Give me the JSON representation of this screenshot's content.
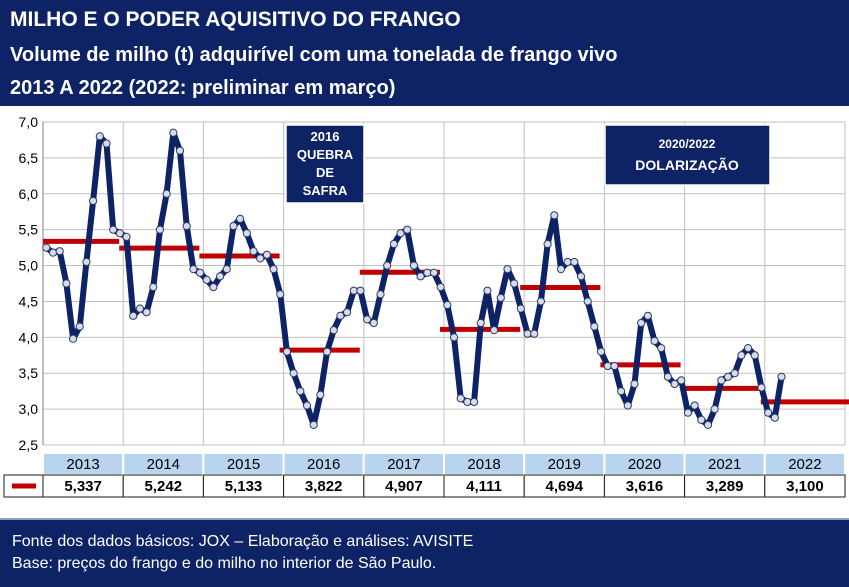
{
  "header": {
    "title": "MILHO E O PODER AQUISITIVO DO FRANGO",
    "subtitle": "Volume de milho (t) adquirível com uma tonelada de frango vivo",
    "period": "2013 A 2022 (2022: preliminar em março)"
  },
  "annotations": {
    "box_2016": [
      "2016",
      "QUEBRA",
      "DE",
      "SAFRA"
    ],
    "box_2020": [
      "2020/2022",
      "DOLARIZAÇÃO"
    ]
  },
  "footer": {
    "line1": "Fonte dos dados básicos: JOX – Elaboração e análises: AVISITE",
    "line2": "Base: preços do frango e do milho no interior de São Paulo."
  },
  "colors": {
    "navy": "#0d2366",
    "line": "#0d2366",
    "average_bar": "#c00000",
    "table_header": "#b8d4ee",
    "grid": "#c0c0c0"
  },
  "chart_data": {
    "type": "line",
    "ylim": [
      2.5,
      7.0
    ],
    "yticks": [
      "2,5",
      "3,0",
      "3,5",
      "4,0",
      "4,5",
      "5,0",
      "5,5",
      "6,0",
      "6,5",
      "7,0"
    ],
    "grid": true,
    "categories": [
      "2013",
      "2014",
      "2015",
      "2016",
      "2017",
      "2018",
      "2019",
      "2020",
      "2021",
      "2022"
    ],
    "annual_averages": [
      "5,337",
      "5,242",
      "5,133",
      "3,822",
      "4,907",
      "4,111",
      "4,694",
      "3,616",
      "3,289",
      "3,100"
    ],
    "average_values": [
      5.337,
      5.242,
      5.133,
      3.822,
      4.907,
      4.111,
      4.694,
      3.616,
      3.289,
      3.1
    ],
    "monthly_values": [
      [
        5.25,
        5.18,
        5.2,
        4.75,
        3.98,
        4.15,
        5.05,
        5.9,
        6.8,
        6.7,
        5.5,
        5.45
      ],
      [
        5.4,
        4.3,
        4.4,
        4.35,
        4.7,
        5.5,
        6.0,
        6.85,
        6.6,
        5.55,
        4.95,
        4.9
      ],
      [
        4.8,
        4.7,
        4.85,
        4.95,
        5.55,
        5.65,
        5.45,
        5.2,
        5.1,
        5.15,
        4.95,
        4.6
      ],
      [
        3.8,
        3.5,
        3.25,
        3.05,
        2.78,
        3.2,
        3.8,
        4.1,
        4.3,
        4.35,
        4.65,
        4.65
      ],
      [
        4.25,
        4.2,
        4.6,
        5.0,
        5.3,
        5.45,
        5.5,
        5.0,
        4.85,
        4.9,
        4.9,
        4.7
      ],
      [
        4.45,
        4.0,
        3.15,
        3.1,
        3.1,
        4.2,
        4.65,
        4.1,
        4.55,
        4.95,
        4.75,
        4.4
      ],
      [
        4.05,
        4.05,
        4.5,
        5.3,
        5.7,
        4.95,
        5.05,
        5.05,
        4.85,
        4.5,
        4.15,
        3.8
      ],
      [
        3.6,
        3.6,
        3.25,
        3.05,
        3.35,
        4.2,
        4.3,
        3.95,
        3.85,
        3.45,
        3.35,
        3.4
      ],
      [
        2.95,
        3.05,
        2.85,
        2.78,
        3.0,
        3.4,
        3.45,
        3.5,
        3.75,
        3.85,
        3.75,
        3.3
      ],
      [
        2.95,
        2.88,
        3.45
      ]
    ]
  }
}
